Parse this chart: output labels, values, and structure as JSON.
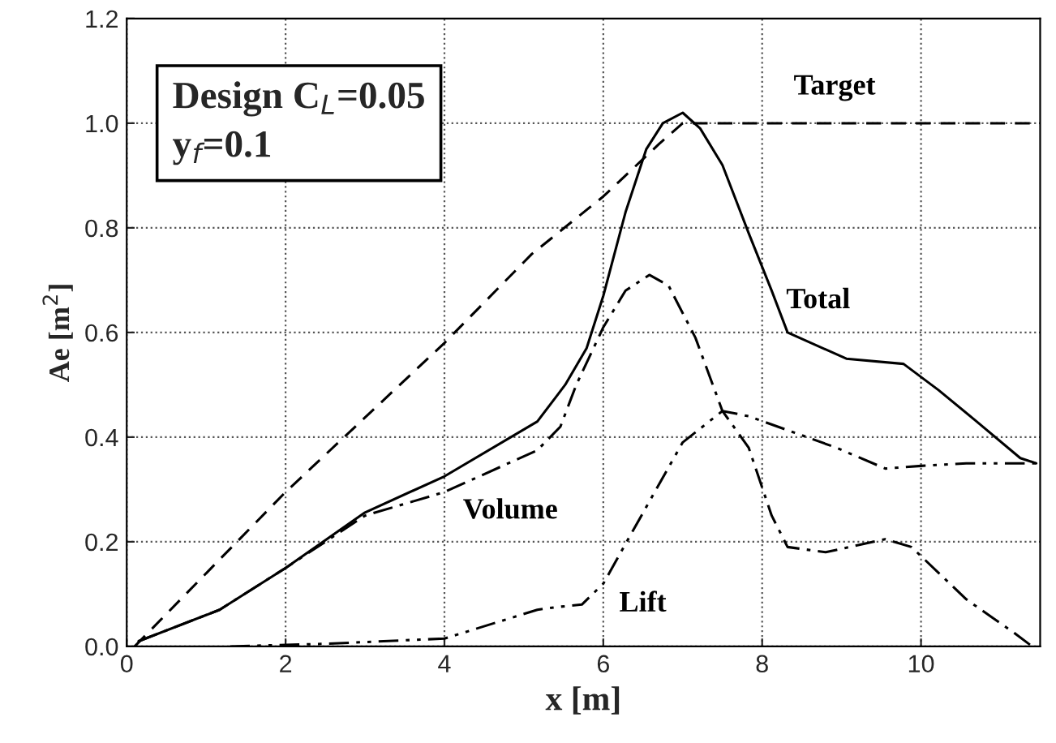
{
  "chart_data": {
    "type": "line",
    "xlabel": "x [m]",
    "ylabel": "Ae [m$^{2}$]",
    "xlim": [
      0,
      11.5
    ],
    "xticks": [
      0,
      2,
      4,
      6,
      8,
      10
    ],
    "ylim": [
      0,
      1.2
    ],
    "yticks": [
      {
        "value": 0,
        "label": "0.0"
      },
      {
        "value": 0.2,
        "label": "0.2"
      },
      {
        "value": 0.4,
        "label": "0.4"
      },
      {
        "value": 0.6,
        "label": "0.6"
      },
      {
        "value": 0.8,
        "label": "0.8"
      },
      {
        "value": 1.0,
        "label": "1.0"
      },
      {
        "value": 1.2,
        "label": "1.2"
      }
    ],
    "grid": true,
    "legend": false,
    "marker": "none",
    "series": [
      {
        "name": "Target",
        "color": "#000000",
        "line_style": "dashed",
        "x": [
          0.1,
          2,
          4,
          5.1,
          6,
          6.7,
          7.0,
          11.5
        ],
        "values": [
          0,
          0.295,
          0.58,
          0.75,
          0.86,
          0.96,
          1.0,
          1.0
        ]
      },
      {
        "name": "Total",
        "color": "#000000",
        "line_style": "solid",
        "x": [
          0.15,
          1.17,
          2,
          3.0,
          4,
          5.17,
          5.42,
          5.52,
          5.79,
          6,
          6.28,
          6.54,
          6.75,
          7.0,
          7.22,
          7.5,
          7.83,
          8.12,
          8.32,
          9.06,
          9.78,
          10.22,
          10.7,
          11.25,
          11.45
        ],
        "values": [
          0.01,
          0.07,
          0.15,
          0.256,
          0.325,
          0.43,
          0.48,
          0.5,
          0.57,
          0.67,
          0.83,
          0.95,
          1.0,
          1.02,
          0.99,
          0.92,
          0.79,
          0.68,
          0.6,
          0.55,
          0.54,
          0.49,
          0.43,
          0.36,
          0.35
        ]
      },
      {
        "name": "Volume",
        "color": "#000000",
        "line_style": "dashdot",
        "x": [
          0.15,
          1.17,
          2,
          3.0,
          4,
          5.17,
          5.46,
          5.66,
          6,
          6.28,
          6.58,
          6.82,
          7.16,
          7.5,
          7.83,
          8.12,
          8.32,
          8.8,
          9.55,
          9.88,
          10.57,
          11.18,
          11.4
        ],
        "values": [
          0.01,
          0.07,
          0.15,
          0.25,
          0.295,
          0.375,
          0.42,
          0.5,
          0.61,
          0.68,
          0.71,
          0.69,
          0.59,
          0.45,
          0.38,
          0.25,
          0.19,
          0.18,
          0.205,
          0.19,
          0.09,
          0.025,
          0
        ]
      },
      {
        "name": "Lift",
        "color": "#000000",
        "line_style": "dashdotdot",
        "x": [
          1.3,
          2.5,
          4,
          5.17,
          5.4,
          5.73,
          6,
          6.48,
          7.0,
          7.5,
          7.83,
          8.38,
          8.93,
          9.55,
          10,
          10.57,
          11.5
        ],
        "values": [
          0,
          0.005,
          0.015,
          0.07,
          0.075,
          0.08,
          0.12,
          0.25,
          0.39,
          0.45,
          0.44,
          0.41,
          0.38,
          0.34,
          0.345,
          0.35,
          0.35
        ]
      }
    ],
    "annotations": [
      "Design C$_{L}$=0.05\ny$_{f}$=0.1"
    ]
  }
}
